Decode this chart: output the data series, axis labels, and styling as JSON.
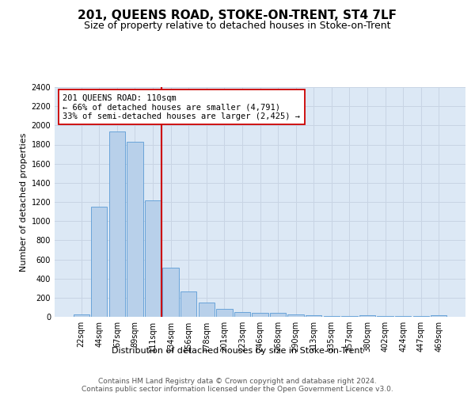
{
  "title": "201, QUEENS ROAD, STOKE-ON-TRENT, ST4 7LF",
  "subtitle": "Size of property relative to detached houses in Stoke-on-Trent",
  "xlabel": "Distribution of detached houses by size in Stoke-on-Trent",
  "ylabel": "Number of detached properties",
  "footer_line1": "Contains HM Land Registry data © Crown copyright and database right 2024.",
  "footer_line2": "Contains public sector information licensed under the Open Government Licence v3.0.",
  "annotation_title": "201 QUEENS ROAD: 110sqm",
  "annotation_line1": "← 66% of detached houses are smaller (4,791)",
  "annotation_line2": "33% of semi-detached houses are larger (2,425) →",
  "bar_categories": [
    "22sqm",
    "44sqm",
    "67sqm",
    "89sqm",
    "111sqm",
    "134sqm",
    "156sqm",
    "178sqm",
    "201sqm",
    "223sqm",
    "246sqm",
    "268sqm",
    "290sqm",
    "313sqm",
    "335sqm",
    "357sqm",
    "380sqm",
    "402sqm",
    "424sqm",
    "447sqm",
    "469sqm"
  ],
  "bar_values": [
    28,
    1150,
    1940,
    1830,
    1220,
    510,
    265,
    150,
    80,
    50,
    45,
    40,
    25,
    20,
    12,
    10,
    20,
    5,
    5,
    5,
    18
  ],
  "bar_color": "#b8d0ea",
  "bar_edge_color": "#5b9bd5",
  "vline_color": "#cc0000",
  "vline_x": 4.5,
  "ylim_max": 2400,
  "ytick_step": 200,
  "grid_color": "#c8d4e4",
  "bg_color": "#dce8f5",
  "title_fontsize": 11,
  "subtitle_fontsize": 9,
  "ylabel_fontsize": 8,
  "tick_fontsize": 7,
  "annotation_fontsize": 7.5,
  "footer_fontsize": 6.5
}
